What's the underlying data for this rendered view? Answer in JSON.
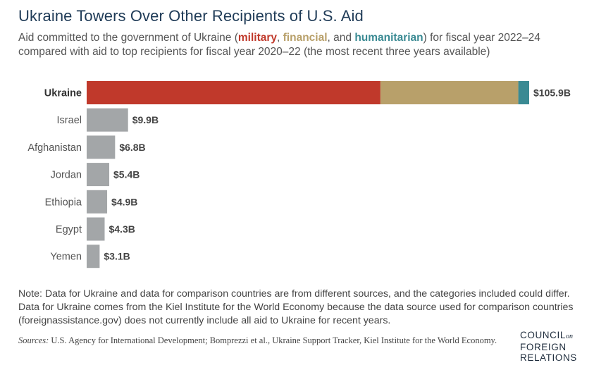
{
  "title": "Ukraine Towers Over Other Recipients of U.S. Aid",
  "subtitle": {
    "part1": "Aid committed to the government of Ukraine (",
    "military": "military",
    "sep1": ", ",
    "financial": "financial",
    "sep2": ", and ",
    "humanitarian": "humanitarian",
    "part2": ") for fiscal year 2022–24 compared with aid to top recipients for fiscal year 2020–22 (the most recent three years available)"
  },
  "colors": {
    "military": "#c0392b",
    "financial": "#b8a06a",
    "humanitarian": "#3a8a93",
    "comparison": "#a3a6a8"
  },
  "chart_data": {
    "type": "bar",
    "orientation": "horizontal",
    "stacked": true,
    "categories": [
      "Ukraine",
      "Israel",
      "Afghanistan",
      "Jordan",
      "Ethiopia",
      "Egypt",
      "Yemen"
    ],
    "ukraine_segments": [
      {
        "name": "military",
        "value": 70.3
      },
      {
        "name": "financial",
        "value": 33.0
      },
      {
        "name": "humanitarian",
        "value": 2.6
      }
    ],
    "values": [
      105.9,
      9.9,
      6.8,
      5.4,
      4.9,
      4.3,
      3.1
    ],
    "labels": [
      "$105.9B",
      "$9.9B",
      "$6.8B",
      "$5.4B",
      "$4.9B",
      "$4.3B",
      "$3.1B"
    ],
    "xlim": [
      0,
      105.9
    ],
    "grid": false,
    "legend": "inline-subtitle"
  },
  "note": "Note: Data for Ukraine and data for comparison countries are from different sources, and the categories included could differ. Data for Ukraine comes from the Kiel Institute for the World Economy because the data source used for comparison countries (foreignassistance.gov) does not currently include all aid to Ukraine for recent years.",
  "sources": {
    "label": "Sources:",
    "text": " U.S. Agency for International Development; Bomprezzi et al., Ukraine Support Tracker, Kiel Institute for the World Economy."
  },
  "logo": {
    "line1": "COUNCIL",
    "on": "on",
    "line2": "FOREIGN",
    "line3": "RELATIONS"
  }
}
